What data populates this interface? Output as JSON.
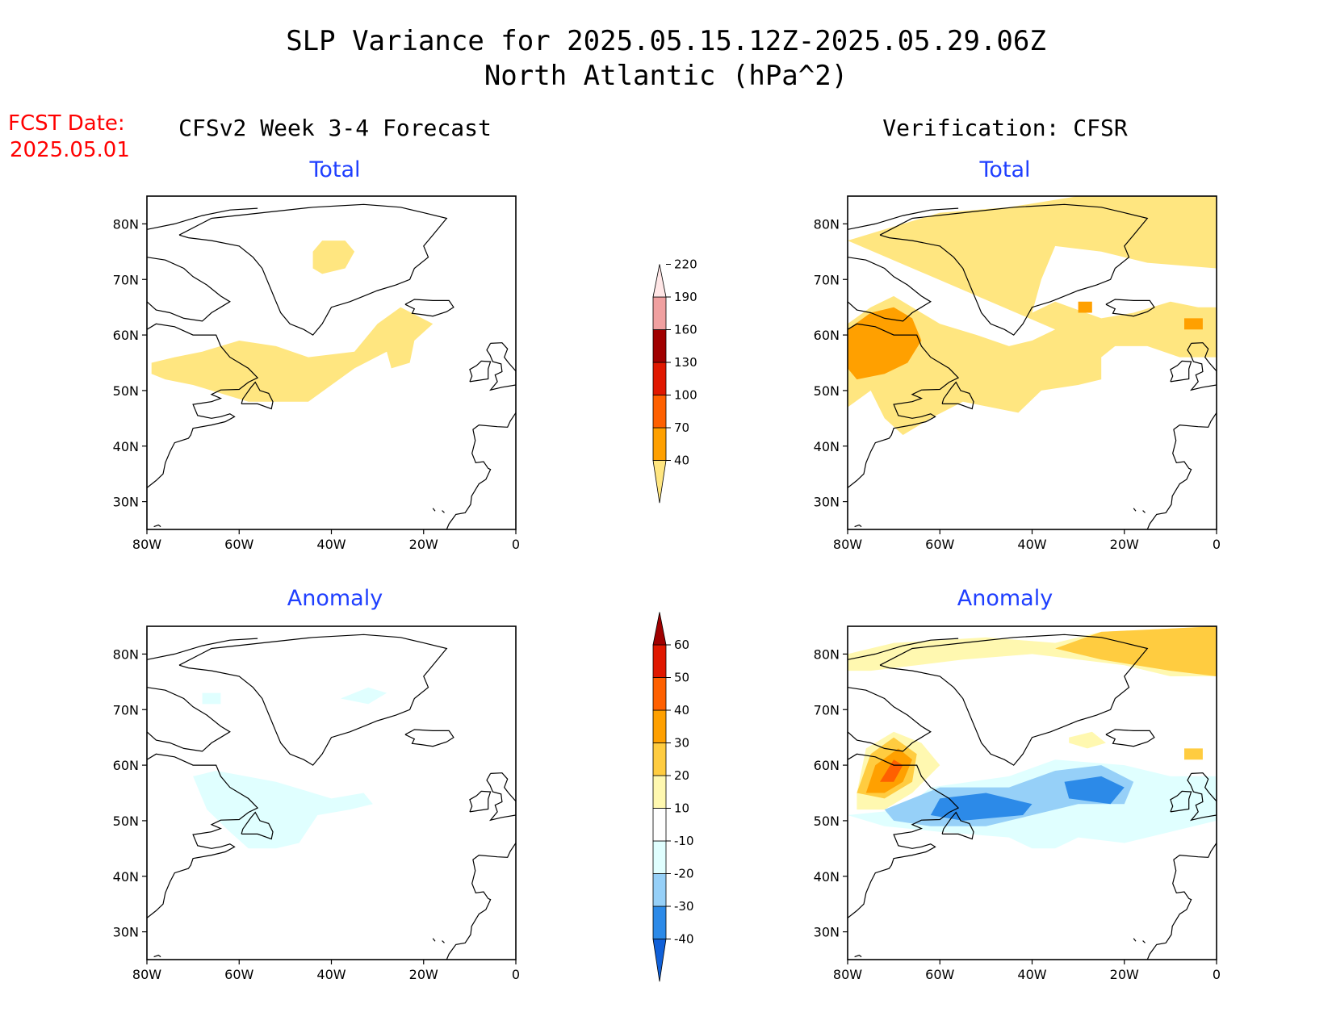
{
  "title": "SLP Variance for 2025.05.15.12Z-2025.05.29.06Z",
  "subtitle": "North Atlantic (hPa^2)",
  "forecast_date": {
    "label": "FCST Date:",
    "value": "2025.05.01"
  },
  "columns": {
    "left": "CFSv2 Week 3-4 Forecast",
    "right": "Verification: CFSR"
  },
  "panels": {
    "fcst_total": "Total",
    "fcst_anomaly": "Anomaly",
    "verif_total": "Total",
    "verif_anomaly": "Anomaly"
  },
  "axes": {
    "lon_ticks": [
      "80W",
      "60W",
      "40W",
      "20W",
      "0"
    ],
    "lat_ticks": [
      "80N",
      "70N",
      "60N",
      "50N",
      "40N",
      "30N"
    ],
    "lon_range": [
      -80,
      0
    ],
    "lat_range": [
      25,
      85
    ]
  },
  "colorbars": {
    "total": {
      "levels": [
        "40",
        "70",
        "100",
        "130",
        "160",
        "190",
        "220"
      ],
      "colors": [
        "#ffe680",
        "#ffa000",
        "#ff6000",
        "#e01800",
        "#a00000",
        "#f0a0a0",
        "#ffe6e6"
      ]
    },
    "anomaly": {
      "levels": [
        "-40",
        "-30",
        "-20",
        "-10",
        "10",
        "20",
        "30",
        "40",
        "50",
        "60"
      ],
      "colors": [
        "#1060d8",
        "#2c8ae8",
        "#96d0f8",
        "#e0ffff",
        "#ffffff",
        "#fff8b0",
        "#ffcc40",
        "#ffa000",
        "#ff6000",
        "#e01800",
        "#a00000"
      ]
    }
  },
  "chart_data": {
    "type": "heatmap",
    "units": "hPa^2",
    "note_values": "shaded regions listed as lon/lat polygons with category value",
    "fcst_total": [
      {
        "value": "40-70",
        "polygon": [
          [
            -42,
            77
          ],
          [
            -37,
            77
          ],
          [
            -35,
            75
          ],
          [
            -37,
            72
          ],
          [
            -42,
            71
          ],
          [
            -44,
            72
          ],
          [
            -44,
            75
          ]
        ]
      },
      {
        "value": "40-70",
        "polygon": [
          [
            -74,
            56
          ],
          [
            -68,
            57
          ],
          [
            -60,
            59
          ],
          [
            -52,
            58
          ],
          [
            -45,
            56
          ],
          [
            -35,
            57
          ],
          [
            -30,
            62
          ],
          [
            -25,
            65
          ],
          [
            -18,
            62
          ],
          [
            -22,
            59
          ],
          [
            -23,
            55
          ],
          [
            -27,
            54
          ],
          [
            -28,
            57
          ],
          [
            -35,
            54
          ],
          [
            -45,
            48
          ],
          [
            -58,
            48
          ],
          [
            -70,
            51
          ],
          [
            -76,
            52
          ],
          [
            -79,
            53
          ],
          [
            -79,
            55
          ]
        ]
      }
    ],
    "fcst_anomaly": [
      {
        "value": "-10 to -20",
        "polygon": [
          [
            -70,
            58
          ],
          [
            -65,
            59
          ],
          [
            -52,
            57
          ],
          [
            -40,
            54
          ],
          [
            -33,
            55
          ],
          [
            -31,
            53
          ],
          [
            -36,
            52
          ],
          [
            -43,
            51
          ],
          [
            -47,
            46
          ],
          [
            -52,
            45
          ],
          [
            -58,
            45
          ],
          [
            -62,
            48
          ],
          [
            -67,
            52
          ]
        ]
      },
      {
        "value": "-10 to -20",
        "polygon": [
          [
            -38,
            72
          ],
          [
            -32,
            74
          ],
          [
            -28,
            73
          ],
          [
            -32,
            71
          ]
        ]
      },
      {
        "value": "-10 to -20",
        "polygon": [
          [
            -68,
            73
          ],
          [
            -64,
            73
          ],
          [
            -64,
            71
          ],
          [
            -68,
            71
          ]
        ]
      }
    ],
    "verif_total": [
      {
        "value": "40-70",
        "polygon": [
          [
            -80,
            77
          ],
          [
            -72,
            79
          ],
          [
            -60,
            82
          ],
          [
            -45,
            83
          ],
          [
            -30,
            85
          ],
          [
            0,
            85
          ],
          [
            0,
            72
          ],
          [
            -15,
            73
          ],
          [
            -25,
            75
          ],
          [
            -35,
            76
          ],
          [
            -38,
            70
          ],
          [
            -40,
            64
          ],
          [
            -35,
            66
          ],
          [
            -25,
            63
          ],
          [
            -18,
            64
          ],
          [
            -10,
            66
          ],
          [
            -4,
            65
          ],
          [
            0,
            65
          ],
          [
            0,
            56
          ],
          [
            -8,
            56
          ],
          [
            -15,
            58
          ],
          [
            -22,
            58
          ],
          [
            -25,
            56
          ],
          [
            -25,
            52
          ],
          [
            -30,
            51
          ],
          [
            -38,
            50
          ],
          [
            -43,
            46
          ],
          [
            -55,
            48
          ],
          [
            -62,
            45
          ],
          [
            -68,
            42
          ],
          [
            -72,
            45
          ],
          [
            -75,
            50
          ],
          [
            -80,
            47
          ],
          [
            -80,
            62
          ],
          [
            -75,
            65
          ],
          [
            -70,
            67
          ],
          [
            -66,
            65
          ],
          [
            -60,
            62
          ],
          [
            -52,
            60
          ],
          [
            -45,
            58
          ],
          [
            -40,
            59
          ],
          [
            -35,
            61
          ]
        ]
      },
      {
        "value": "70-100",
        "polygon": [
          [
            -80,
            54
          ],
          [
            -80,
            61
          ],
          [
            -75,
            64
          ],
          [
            -70,
            65
          ],
          [
            -66,
            63
          ],
          [
            -64,
            59
          ],
          [
            -67,
            55
          ],
          [
            -72,
            53
          ],
          [
            -78,
            52
          ]
        ]
      },
      {
        "value": "70-100",
        "polygon": [
          [
            -30,
            66
          ],
          [
            -27,
            66
          ],
          [
            -27,
            64
          ],
          [
            -30,
            64
          ]
        ]
      },
      {
        "value": "70-100",
        "polygon": [
          [
            -7,
            63
          ],
          [
            -3,
            63
          ],
          [
            -3,
            61
          ],
          [
            -7,
            61
          ]
        ]
      }
    ],
    "verif_anomaly": [
      {
        "value": "10-20",
        "polygon": [
          [
            -80,
            80
          ],
          [
            -70,
            82
          ],
          [
            -50,
            83
          ],
          [
            -35,
            82
          ],
          [
            -25,
            84
          ],
          [
            0,
            85
          ],
          [
            0,
            76
          ],
          [
            -10,
            76
          ],
          [
            -20,
            78
          ],
          [
            -30,
            79
          ],
          [
            -40,
            80
          ],
          [
            -55,
            79
          ],
          [
            -65,
            78
          ],
          [
            -75,
            77
          ],
          [
            -80,
            77
          ]
        ]
      },
      {
        "value": "20-30",
        "polygon": [
          [
            -35,
            81
          ],
          [
            -25,
            84
          ],
          [
            0,
            85
          ],
          [
            0,
            76
          ],
          [
            -10,
            77
          ],
          [
            -25,
            79
          ]
        ]
      },
      {
        "value": "10-20",
        "polygon": [
          [
            -78,
            55
          ],
          [
            -76,
            63
          ],
          [
            -70,
            66
          ],
          [
            -64,
            64
          ],
          [
            -60,
            60
          ],
          [
            -66,
            55
          ],
          [
            -72,
            52
          ],
          [
            -78,
            52
          ]
        ]
      },
      {
        "value": "20-30",
        "polygon": [
          [
            -78,
            55
          ],
          [
            -75,
            62
          ],
          [
            -70,
            65
          ],
          [
            -65,
            62
          ],
          [
            -66,
            57
          ],
          [
            -72,
            54
          ]
        ]
      },
      {
        "value": "30-40",
        "polygon": [
          [
            -76,
            55
          ],
          [
            -74,
            60
          ],
          [
            -69,
            63
          ],
          [
            -66,
            61
          ],
          [
            -68,
            57
          ],
          [
            -72,
            55
          ]
        ]
      },
      {
        "value": "40-50",
        "polygon": [
          [
            -73,
            57
          ],
          [
            -70,
            61
          ],
          [
            -68,
            60
          ],
          [
            -70,
            57
          ]
        ]
      },
      {
        "value": "-10 to -20",
        "polygon": [
          [
            -80,
            51
          ],
          [
            -68,
            52
          ],
          [
            -62,
            56
          ],
          [
            -45,
            58
          ],
          [
            -35,
            61
          ],
          [
            -20,
            60
          ],
          [
            -10,
            58
          ],
          [
            0,
            58
          ],
          [
            0,
            50
          ],
          [
            -10,
            48
          ],
          [
            -20,
            46
          ],
          [
            -30,
            47
          ],
          [
            -35,
            45
          ],
          [
            -40,
            45
          ],
          [
            -45,
            47
          ],
          [
            -60,
            48
          ],
          [
            -72,
            49
          ]
        ]
      },
      {
        "value": "-20 to -30",
        "polygon": [
          [
            -72,
            52
          ],
          [
            -60,
            56
          ],
          [
            -45,
            56
          ],
          [
            -35,
            59
          ],
          [
            -25,
            60
          ],
          [
            -18,
            57
          ],
          [
            -20,
            53
          ],
          [
            -30,
            53
          ],
          [
            -40,
            51
          ],
          [
            -50,
            49
          ],
          [
            -62,
            49
          ],
          [
            -70,
            50
          ]
        ]
      },
      {
        "value": "-30 to -40",
        "polygon": [
          [
            -60,
            54
          ],
          [
            -50,
            55
          ],
          [
            -40,
            53
          ],
          [
            -42,
            51
          ],
          [
            -55,
            50
          ],
          [
            -62,
            51
          ]
        ]
      },
      {
        "value": "-30 to -40",
        "polygon": [
          [
            -33,
            57
          ],
          [
            -25,
            58
          ],
          [
            -20,
            56
          ],
          [
            -23,
            53
          ],
          [
            -32,
            54
          ]
        ]
      },
      {
        "value": "10-20",
        "polygon": [
          [
            -32,
            65
          ],
          [
            -27,
            66
          ],
          [
            -24,
            64
          ],
          [
            -28,
            63
          ],
          [
            -32,
            64
          ]
        ]
      },
      {
        "value": "20-30",
        "polygon": [
          [
            -7,
            63
          ],
          [
            -3,
            63
          ],
          [
            -3,
            61
          ],
          [
            -7,
            61
          ]
        ]
      }
    ]
  }
}
